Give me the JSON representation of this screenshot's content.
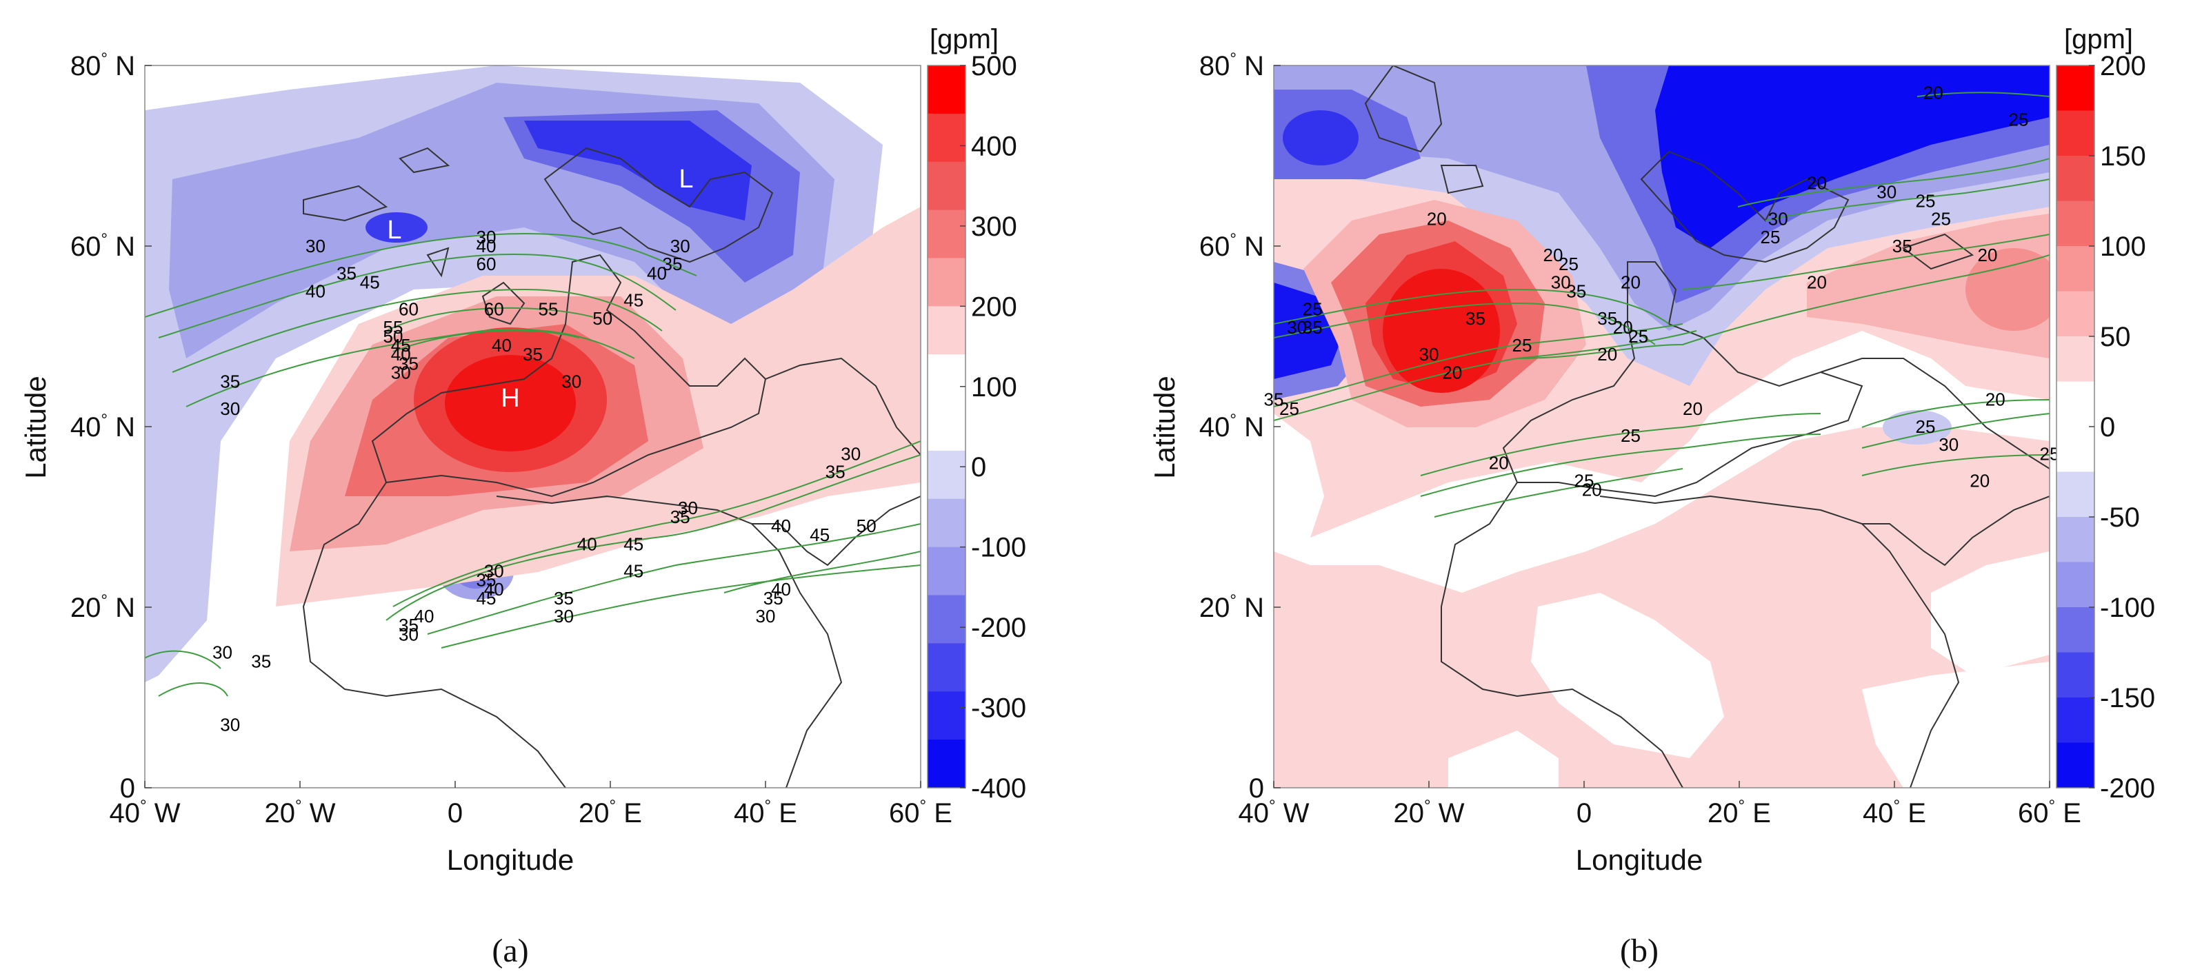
{
  "chart_data": [
    {
      "type": "heatmap",
      "panel_label": "(a)",
      "xlabel": "Longitude",
      "ylabel": "Latitude",
      "xlim": [
        -40,
        60
      ],
      "ylim": [
        0,
        80
      ],
      "xticks": [
        -40,
        -20,
        0,
        20,
        40,
        60
      ],
      "xtick_labels": [
        "40 W",
        "20 W",
        "0",
        "20 E",
        "40 E",
        "60 E"
      ],
      "yticks": [
        0,
        20,
        40,
        60,
        80
      ],
      "ytick_labels": [
        "0",
        "20 N",
        "40 N",
        "60 N",
        "80 N"
      ],
      "colorbar": {
        "unit": "[gpm]",
        "min": -400,
        "max": 500,
        "ticks": [
          500,
          400,
          300,
          200,
          100,
          0,
          -100,
          -200,
          -300,
          -400
        ],
        "tick_labels": [
          "500",
          "400",
          "300",
          "200",
          "100",
          "0",
          "-100",
          "-200",
          "-300",
          "-400"
        ]
      },
      "anomaly_centers": [
        {
          "label": "H",
          "lon": 7,
          "lat": 43
        },
        {
          "label": "L",
          "lon": 30,
          "lat": 68
        },
        {
          "label": "L",
          "lon": -7,
          "lat": 61
        }
      ],
      "contour_labels": [
        {
          "text": "30",
          "lon": -30,
          "lat": 15
        },
        {
          "text": "35",
          "lon": -25,
          "lat": 14
        },
        {
          "text": "30",
          "lon": -29,
          "lat": 7
        },
        {
          "text": "30",
          "lon": -18,
          "lat": 60
        },
        {
          "text": "35",
          "lon": -14,
          "lat": 57
        },
        {
          "text": "40",
          "lon": -18,
          "lat": 55
        },
        {
          "text": "45",
          "lon": -11,
          "lat": 56
        },
        {
          "text": "35",
          "lon": -29,
          "lat": 45
        },
        {
          "text": "30",
          "lon": -29,
          "lat": 42
        },
        {
          "text": "30",
          "lon": 4,
          "lat": 61
        },
        {
          "text": "40",
          "lon": 4,
          "lat": 60
        },
        {
          "text": "60",
          "lon": 4,
          "lat": 58
        },
        {
          "text": "60",
          "lon": -6,
          "lat": 53
        },
        {
          "text": "55",
          "lon": -8,
          "lat": 51
        },
        {
          "text": "50",
          "lon": -8,
          "lat": 50
        },
        {
          "text": "45",
          "lon": -7,
          "lat": 49
        },
        {
          "text": "40",
          "lon": -7,
          "lat": 48
        },
        {
          "text": "35",
          "lon": -6,
          "lat": 47
        },
        {
          "text": "30",
          "lon": -7,
          "lat": 46
        },
        {
          "text": "60",
          "lon": 5,
          "lat": 53
        },
        {
          "text": "55",
          "lon": 12,
          "lat": 53
        },
        {
          "text": "50",
          "lon": 19,
          "lat": 52
        },
        {
          "text": "45",
          "lon": 23,
          "lat": 54
        },
        {
          "text": "40",
          "lon": 6,
          "lat": 49
        },
        {
          "text": "35",
          "lon": 10,
          "lat": 48
        },
        {
          "text": "30",
          "lon": 15,
          "lat": 45
        },
        {
          "text": "30",
          "lon": 29,
          "lat": 60
        },
        {
          "text": "35",
          "lon": 28,
          "lat": 58
        },
        {
          "text": "40",
          "lon": 26,
          "lat": 57
        },
        {
          "text": "30",
          "lon": 51,
          "lat": 37
        },
        {
          "text": "35",
          "lon": 49,
          "lat": 35
        },
        {
          "text": "30",
          "lon": 30,
          "lat": 31
        },
        {
          "text": "35",
          "lon": 29,
          "lat": 30
        },
        {
          "text": "40",
          "lon": 42,
          "lat": 29
        },
        {
          "text": "45",
          "lon": 47,
          "lat": 28
        },
        {
          "text": "50",
          "lon": 53,
          "lat": 29
        },
        {
          "text": "40",
          "lon": 17,
          "lat": 27
        },
        {
          "text": "45",
          "lon": 23,
          "lat": 27
        },
        {
          "text": "45",
          "lon": 23,
          "lat": 24
        },
        {
          "text": "30",
          "lon": 5,
          "lat": 24
        },
        {
          "text": "35",
          "lon": 4,
          "lat": 23
        },
        {
          "text": "40",
          "lon": 5,
          "lat": 22
        },
        {
          "text": "45",
          "lon": 4,
          "lat": 21
        },
        {
          "text": "35",
          "lon": 14,
          "lat": 21
        },
        {
          "text": "30",
          "lon": 14,
          "lat": 19
        },
        {
          "text": "40",
          "lon": -4,
          "lat": 19
        },
        {
          "text": "35",
          "lon": -6,
          "lat": 18
        },
        {
          "text": "30",
          "lon": -6,
          "lat": 17
        },
        {
          "text": "40",
          "lon": 42,
          "lat": 22
        },
        {
          "text": "35",
          "lon": 41,
          "lat": 21
        },
        {
          "text": "30",
          "lon": 40,
          "lat": 19
        }
      ]
    },
    {
      "type": "heatmap",
      "panel_label": "(b)",
      "xlabel": "Longitude",
      "ylabel": "Latitude",
      "xlim": [
        -40,
        60
      ],
      "ylim": [
        0,
        80
      ],
      "xticks": [
        -40,
        -20,
        0,
        20,
        40,
        60
      ],
      "xtick_labels": [
        "40 W",
        "20 W",
        "0",
        "20 E",
        "40 E",
        "60 E"
      ],
      "yticks": [
        0,
        20,
        40,
        60,
        80
      ],
      "ytick_labels": [
        "0",
        "20 N",
        "40 N",
        "60 N",
        "80 N"
      ],
      "colorbar": {
        "unit": "[gpm]",
        "min": -200,
        "max": 200,
        "ticks": [
          200,
          150,
          100,
          50,
          0,
          -50,
          -100,
          -150,
          -200
        ],
        "tick_labels": [
          "200",
          "150",
          "100",
          "50",
          "0",
          "-50",
          "-100",
          "-150",
          "-200"
        ]
      },
      "contour_labels": [
        {
          "text": "20",
          "lon": -19,
          "lat": 63
        },
        {
          "text": "20",
          "lon": -4,
          "lat": 59
        },
        {
          "text": "25",
          "lon": -2,
          "lat": 58
        },
        {
          "text": "30",
          "lon": -3,
          "lat": 56
        },
        {
          "text": "35",
          "lon": -1,
          "lat": 55
        },
        {
          "text": "35",
          "lon": -14,
          "lat": 52
        },
        {
          "text": "30",
          "lon": -20,
          "lat": 48
        },
        {
          "text": "20",
          "lon": -17,
          "lat": 46
        },
        {
          "text": "25",
          "lon": -8,
          "lat": 49
        },
        {
          "text": "35",
          "lon": 3,
          "lat": 52
        },
        {
          "text": "20",
          "lon": 5,
          "lat": 51
        },
        {
          "text": "25",
          "lon": 7,
          "lat": 50
        },
        {
          "text": "20",
          "lon": 3,
          "lat": 48
        },
        {
          "text": "20",
          "lon": 6,
          "lat": 56
        },
        {
          "text": "25",
          "lon": -35,
          "lat": 53
        },
        {
          "text": "30",
          "lon": -37,
          "lat": 51
        },
        {
          "text": "35",
          "lon": -35,
          "lat": 51
        },
        {
          "text": "35",
          "lon": -40,
          "lat": 43
        },
        {
          "text": "25",
          "lon": -38,
          "lat": 42
        },
        {
          "text": "20",
          "lon": 30,
          "lat": 67
        },
        {
          "text": "30",
          "lon": 25,
          "lat": 63
        },
        {
          "text": "25",
          "lon": 24,
          "lat": 61
        },
        {
          "text": "30",
          "lon": 39,
          "lat": 66
        },
        {
          "text": "25",
          "lon": 44,
          "lat": 65
        },
        {
          "text": "25",
          "lon": 46,
          "lat": 63
        },
        {
          "text": "35",
          "lon": 41,
          "lat": 60
        },
        {
          "text": "20",
          "lon": 52,
          "lat": 59
        },
        {
          "text": "20",
          "lon": 30,
          "lat": 56
        },
        {
          "text": "20",
          "lon": 45,
          "lat": 77
        },
        {
          "text": "25",
          "lon": 56,
          "lat": 74
        },
        {
          "text": "20",
          "lon": 14,
          "lat": 42
        },
        {
          "text": "25",
          "lon": 6,
          "lat": 39
        },
        {
          "text": "20",
          "lon": -11,
          "lat": 36
        },
        {
          "text": "25",
          "lon": 0,
          "lat": 34
        },
        {
          "text": "20",
          "lon": 1,
          "lat": 33
        },
        {
          "text": "25",
          "lon": 44,
          "lat": 40
        },
        {
          "text": "30",
          "lon": 47,
          "lat": 38
        },
        {
          "text": "20",
          "lon": 53,
          "lat": 43
        },
        {
          "text": "25",
          "lon": 60,
          "lat": 37
        },
        {
          "text": "20",
          "lon": 51,
          "lat": 34
        }
      ]
    }
  ]
}
